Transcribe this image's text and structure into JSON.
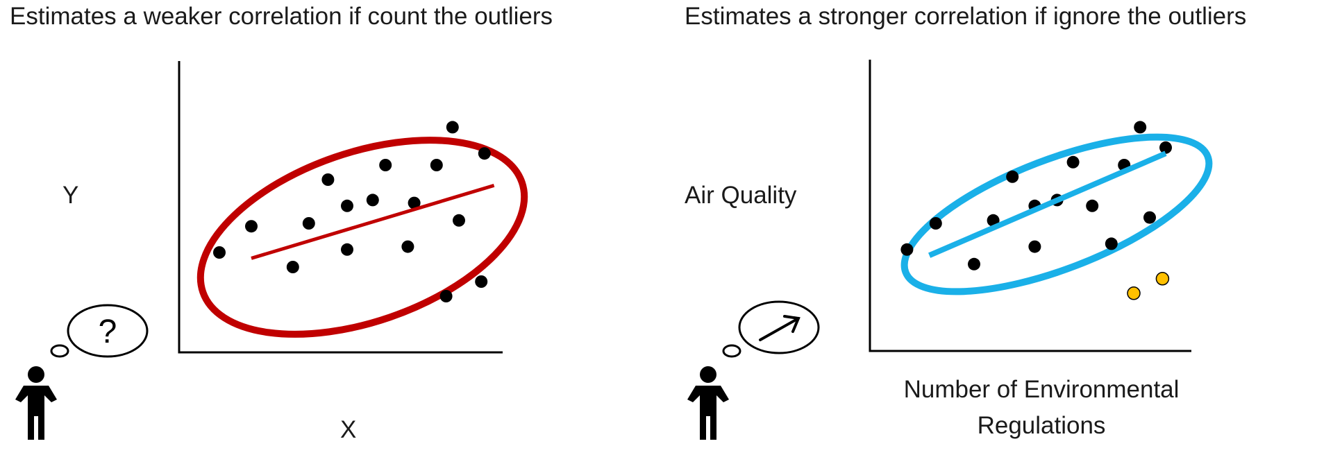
{
  "panels": {
    "left": {
      "title": "Estimates a weaker correlation if count the outliers",
      "ylabel": "Y",
      "xlabel": "X",
      "thought_symbol": "?",
      "thought_icon": "question-mark-icon",
      "ellipse_color": "#c00000"
    },
    "right": {
      "title": "Estimates a stronger correlation if ignore the outliers",
      "ylabel": "Air Quality",
      "xlabel": "Number of Environmental Regulations",
      "thought_icon": "arrow-up-right-icon",
      "ellipse_color": "#1ab0e8",
      "outlier_color": "#ffc000"
    }
  },
  "chart_data": [
    {
      "type": "scatter",
      "title": "Estimates a weaker correlation if count the outliers",
      "xlabel": "X",
      "ylabel": "Y",
      "points": [
        {
          "x": 1.0,
          "y": 3.0
        },
        {
          "x": 2.0,
          "y": 3.9
        },
        {
          "x": 3.3,
          "y": 2.5
        },
        {
          "x": 3.8,
          "y": 4.0
        },
        {
          "x": 4.4,
          "y": 5.5
        },
        {
          "x": 5.0,
          "y": 4.6
        },
        {
          "x": 5.0,
          "y": 3.1
        },
        {
          "x": 5.8,
          "y": 4.8
        },
        {
          "x": 6.2,
          "y": 6.0
        },
        {
          "x": 6.9,
          "y": 3.2
        },
        {
          "x": 7.1,
          "y": 4.7
        },
        {
          "x": 7.8,
          "y": 6.0
        },
        {
          "x": 8.1,
          "y": 1.5
        },
        {
          "x": 8.3,
          "y": 7.3
        },
        {
          "x": 8.5,
          "y": 4.1
        },
        {
          "x": 9.3,
          "y": 6.4
        },
        {
          "x": 9.2,
          "y": 2.0
        }
      ],
      "trend_line": [
        {
          "x": 2.0,
          "y": 2.8
        },
        {
          "x": 9.6,
          "y": 5.3
        }
      ]
    },
    {
      "type": "scatter",
      "title": "Estimates a stronger correlation if ignore the outliers",
      "xlabel": "Number of Environmental Regulations",
      "ylabel": "Air Quality",
      "points": [
        {
          "x": 0.9,
          "y": 3.1
        },
        {
          "x": 1.8,
          "y": 4.0
        },
        {
          "x": 3.0,
          "y": 2.6
        },
        {
          "x": 3.6,
          "y": 4.1
        },
        {
          "x": 4.2,
          "y": 5.6
        },
        {
          "x": 4.9,
          "y": 4.6
        },
        {
          "x": 4.9,
          "y": 3.2
        },
        {
          "x": 5.6,
          "y": 4.8
        },
        {
          "x": 6.1,
          "y": 6.1
        },
        {
          "x": 6.7,
          "y": 4.6
        },
        {
          "x": 7.3,
          "y": 3.3
        },
        {
          "x": 7.7,
          "y": 6.0
        },
        {
          "x": 8.2,
          "y": 7.3
        },
        {
          "x": 8.5,
          "y": 4.2
        },
        {
          "x": 9.0,
          "y": 6.6
        }
      ],
      "outliers": [
        {
          "x": 8.0,
          "y": 1.6
        },
        {
          "x": 8.9,
          "y": 2.1
        }
      ],
      "trend_line": [
        {
          "x": 1.6,
          "y": 2.9
        },
        {
          "x": 9.0,
          "y": 6.4
        }
      ]
    }
  ]
}
